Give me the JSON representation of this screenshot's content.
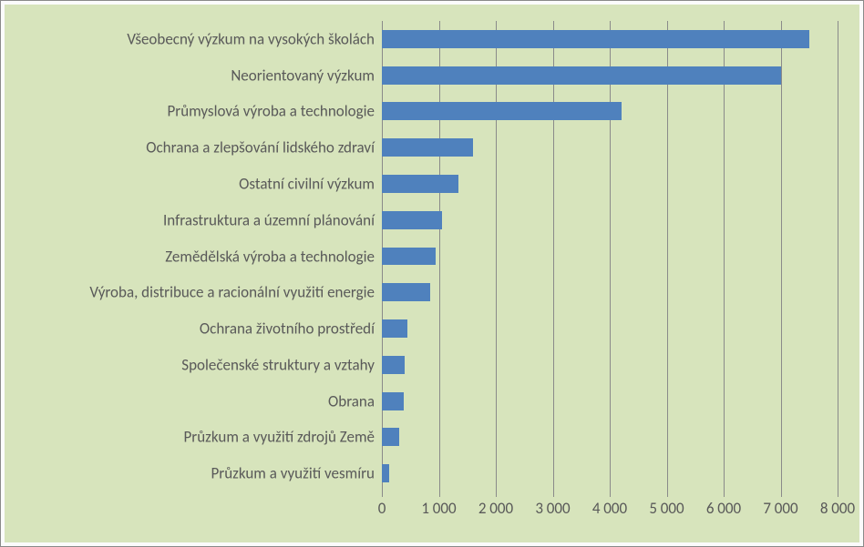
{
  "chart": {
    "type": "bar",
    "orientation": "horizontal",
    "background_color": "#d7e4bc",
    "outer_background_color": "#fbfbfb",
    "border_color": "#8a8a8a",
    "grid_color": "#8a8a8a",
    "bar_color": "#4f81bd",
    "label_color": "#595959",
    "label_fontsize_pt": 13,
    "bar_width_ratio": 0.5,
    "xaxis": {
      "min": 0,
      "max": 8000,
      "tick_step": 1000,
      "tick_labels": [
        "0",
        "1 000",
        "2 000",
        "3 000",
        "4 000",
        "5 000",
        "6 000",
        "7 000",
        "8 000"
      ]
    },
    "series": [
      {
        "label": "Všeobecný výzkum na vysokých školách",
        "value": 7500
      },
      {
        "label": "Neorientovaný výzkum",
        "value": 7000
      },
      {
        "label": "Průmyslová výroba a technologie",
        "value": 4200
      },
      {
        "label": "Ochrana a zlepšování lidského zdraví",
        "value": 1600
      },
      {
        "label": "Ostatní civilní výzkum",
        "value": 1350
      },
      {
        "label": "Infrastruktura a územní plánování",
        "value": 1050
      },
      {
        "label": "Zemědělská výroba a technologie",
        "value": 950
      },
      {
        "label": "Výroba, distribuce a racionální využití energie",
        "value": 850
      },
      {
        "label": "Ochrana životního prostředí",
        "value": 450
      },
      {
        "label": "Společenské struktury a vztahy",
        "value": 400
      },
      {
        "label": "Obrana",
        "value": 380
      },
      {
        "label": "Průzkum a využití zdrojů Země",
        "value": 300
      },
      {
        "label": "Průzkum a využití vesmíru",
        "value": 120
      }
    ]
  }
}
